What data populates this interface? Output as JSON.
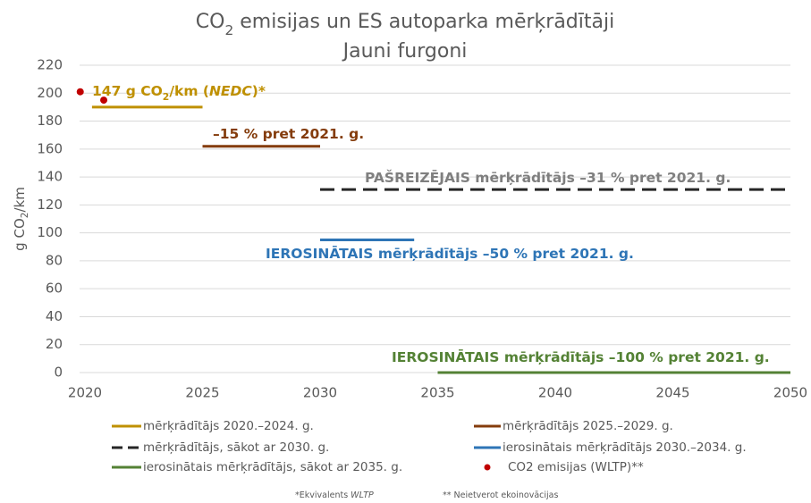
{
  "chart_data": {
    "type": "line",
    "title_parts": [
      "CO",
      "2",
      " emisijas un ES autoparka mērķrādītāji"
    ],
    "subtitle": "Jauni furgoni",
    "ylabel_parts": [
      "g CO",
      "2",
      "/km"
    ],
    "xlim": [
      2020,
      2050
    ],
    "xticks": [
      2020,
      2025,
      2030,
      2035,
      2040,
      2045,
      2050
    ],
    "ylim": [
      0,
      220
    ],
    "yticks": [
      0,
      20,
      40,
      60,
      80,
      100,
      120,
      140,
      160,
      180,
      200,
      220
    ],
    "grid": true,
    "series": [
      {
        "name": "mērķrādītājs 2020.–2024. g.",
        "color": "#bf9000",
        "style": "solid",
        "x": [
          2020.3,
          2025
        ],
        "values": [
          190,
          190
        ]
      },
      {
        "name": "mērķrādītājs 2025.–2029. g.",
        "color": "#843c0c",
        "style": "solid",
        "x": [
          2025,
          2030
        ],
        "values": [
          162,
          162
        ]
      },
      {
        "name": " mērķrādītājs, sākot ar 2030. g.",
        "color": "#262626",
        "style": "dashed",
        "x": [
          2030,
          2050
        ],
        "values": [
          131,
          131
        ]
      },
      {
        "name": "ierosinātais mērķrādītājs 2030.–2034. g.",
        "color": "#2e75b6",
        "style": "solid",
        "x": [
          2030,
          2034
        ],
        "values": [
          95,
          95
        ]
      },
      {
        "name": "ierosinātais mērķrādītājs, sākot ar 2035. g.",
        "color": "#548235",
        "style": "solid",
        "x": [
          2035,
          2050
        ],
        "values": [
          0,
          0
        ]
      },
      {
        "name": "CO2 emisijas (WLTP)**",
        "color": "#c00000",
        "style": "markers",
        "x": [
          2019.8,
          2020.8
        ],
        "values": [
          201,
          195
        ]
      }
    ],
    "annotations": [
      {
        "parts": [
          "147 g CO",
          "2",
          "/km (",
          "NEDC",
          ")*"
        ],
        "color": "#bf9000"
      },
      {
        "parts": [
          "–15 % pret 2021. g."
        ],
        "color": "#843c0c"
      },
      {
        "parts": [
          "PAŠREIZĒJAIS mērķrādītājs –31 % pret 2021. g."
        ],
        "color": "#7f7f7f"
      },
      {
        "parts": [
          "IEROSINĀTAIS mērķrādītājs –50 % pret 2021. g."
        ],
        "color": "#2e75b6"
      },
      {
        "parts": [
          "IEROSINĀTAIS mērķrādītājs –100 % pret 2021. g."
        ],
        "color": "#548235"
      }
    ],
    "footnotes": [
      {
        "parts": [
          "*Ekvivalents ",
          "WLTP"
        ]
      },
      {
        "parts": [
          "** Neietverot ekoinovācijas"
        ]
      }
    ]
  }
}
